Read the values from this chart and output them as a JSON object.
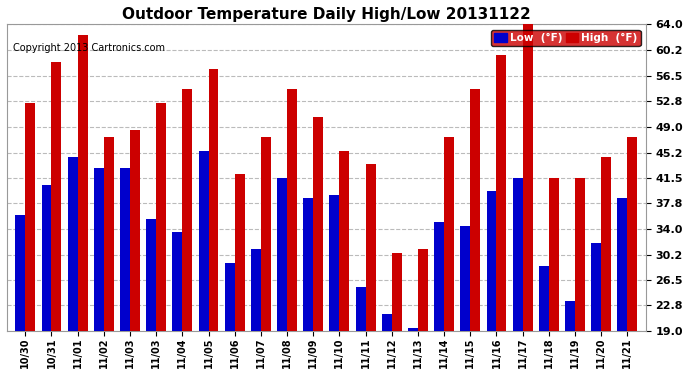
{
  "title": "Outdoor Temperature Daily High/Low 20131122",
  "copyright": "Copyright 2013 Cartronics.com",
  "legend_low": "Low  (°F)",
  "legend_high": "High  (°F)",
  "dates": [
    "10/30",
    "10/31",
    "11/01",
    "11/02",
    "11/03",
    "11/03",
    "11/04",
    "11/05",
    "11/06",
    "11/07",
    "11/08",
    "11/09",
    "11/10",
    "11/11",
    "11/12",
    "11/13",
    "11/14",
    "11/15",
    "11/16",
    "11/17",
    "11/18",
    "11/19",
    "11/20",
    "11/21"
  ],
  "low_vals": [
    36.0,
    40.5,
    44.5,
    43.0,
    43.0,
    35.5,
    33.5,
    45.5,
    29.0,
    31.0,
    41.5,
    38.5,
    39.0,
    25.5,
    21.5,
    19.5,
    35.0,
    34.5,
    39.5,
    41.5,
    28.5,
    23.5,
    32.0,
    38.5
  ],
  "high_vals": [
    52.5,
    58.5,
    62.5,
    47.5,
    48.5,
    52.5,
    54.5,
    57.5,
    42.0,
    47.5,
    54.5,
    50.5,
    45.5,
    43.5,
    30.5,
    31.0,
    47.5,
    54.5,
    59.5,
    64.0,
    41.5,
    41.5,
    44.5,
    47.5
  ],
  "ymin": 19.0,
  "ymax": 64.0,
  "yticks": [
    19.0,
    22.8,
    26.5,
    30.2,
    34.0,
    37.8,
    41.5,
    45.2,
    49.0,
    52.8,
    56.5,
    60.2,
    64.0
  ],
  "ytick_labels": [
    "19.0",
    "22.8",
    "26.5",
    "30.2",
    "34.0",
    "37.8",
    "41.5",
    "45.2",
    "49.0",
    "52.8",
    "56.5",
    "60.2",
    "64.0"
  ],
  "bar_color_low": "#0000cc",
  "bar_color_high": "#cc0000",
  "bg_color": "#ffffff",
  "grid_color": "#bbbbbb"
}
